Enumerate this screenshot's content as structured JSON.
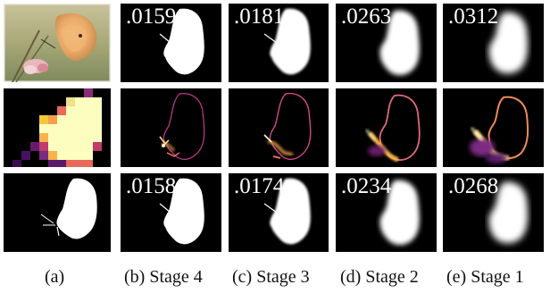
{
  "figure": {
    "columns": [
      {
        "caption": "(a)"
      },
      {
        "caption": "(b) Stage 4"
      },
      {
        "caption": "(c) Stage 3"
      },
      {
        "caption": "(d) Stage 2"
      },
      {
        "caption": "(e) Stage 1"
      }
    ],
    "rows": [
      {
        "content": "predicted-masks",
        "values": [
          ".0159",
          ".0181",
          ".0263",
          ".0312"
        ]
      },
      {
        "content": "error-heatmaps"
      },
      {
        "content": "refined-masks",
        "values": [
          ".0158",
          ".0174",
          ".0234",
          ".0268"
        ]
      }
    ],
    "colors": {
      "background": "#000000",
      "mask": "#ffffff",
      "heat_low": "#2b0a4a",
      "heat_mid": "#c23a6e",
      "heat_high": "#fcfdbf",
      "page": "#ffffff"
    }
  }
}
